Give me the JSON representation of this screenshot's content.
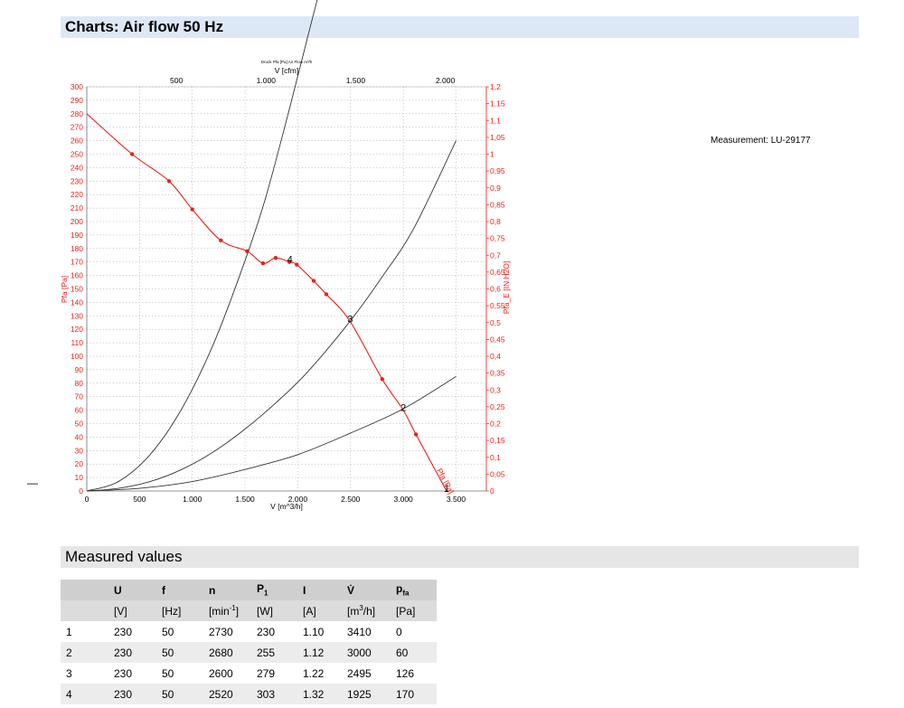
{
  "header": {
    "title": "Charts: Air flow 50 Hz"
  },
  "measurement": "Measurement: LU-29177",
  "dash": "—",
  "chart_data": {
    "type": "line",
    "top_caption": "Druck Pfa [Pa] Air Flow m³/h",
    "x_bottom": {
      "label": "V [m^3/h]",
      "ticks": [
        0,
        500,
        1000,
        1500,
        2000,
        2500,
        3000,
        3500
      ],
      "tick_labels": [
        "0",
        "500",
        "1.000",
        "1.500",
        "2.000",
        "2.500",
        "3.000",
        "3.500"
      ],
      "range": [
        0,
        3500
      ]
    },
    "x_top": {
      "label": "V [cfm]",
      "ticks": [
        500,
        1000,
        1500,
        2000
      ],
      "tick_labels": [
        "500",
        "1.000",
        "1.500",
        "2.000"
      ]
    },
    "y_left": {
      "label": "Pfa [Pa]",
      "range": [
        0,
        300
      ],
      "step": 10
    },
    "y_right": {
      "label": "Pfa_E [IN H2O]",
      "tick_labels": [
        "0",
        "0,05",
        "0,1",
        "0,15",
        "0,2",
        "0,25",
        "0,3",
        "0,35",
        "0,4",
        "0,45",
        "0,5",
        "0,55",
        "0,6",
        "0,65",
        "0,7",
        "0,75",
        "0,8",
        "0,85",
        "0,9",
        "0,95",
        "1",
        "1,05",
        "1,1",
        "1,15",
        "1,2"
      ]
    },
    "grid": true,
    "series": [
      {
        "name": "Pfa [Pa]",
        "color": "#e8211c",
        "x": [
          0,
          430,
          780,
          1000,
          1270,
          1520,
          1670,
          1790,
          1920,
          1990,
          2150,
          2270,
          2495,
          2800,
          3000,
          3120,
          3410
        ],
        "y": [
          280,
          250,
          230,
          209,
          186,
          178,
          169,
          173,
          170,
          168,
          156,
          146,
          126,
          83,
          60,
          42,
          0
        ],
        "markers": [
          430,
          780,
          1000,
          1270,
          1520,
          1670,
          1790,
          1920,
          1990,
          2150,
          2270,
          2800,
          3120
        ]
      },
      {
        "name": "",
        "color": "#333333",
        "x": [
          0,
          300,
          600,
          900,
          1200,
          1500,
          1700,
          1925,
          2100,
          2300
        ],
        "y": [
          0,
          7,
          27,
          61,
          109,
          171,
          219,
          285,
          339,
          400
        ]
      },
      {
        "name": "",
        "color": "#333333",
        "x": [
          0,
          300,
          600,
          900,
          1200,
          1500,
          1800,
          2100,
          2495,
          2800,
          3100,
          3500
        ],
        "y": [
          0,
          2,
          7,
          16,
          29,
          46,
          66,
          89,
          126,
          159,
          195,
          260
        ]
      },
      {
        "name": "",
        "color": "#333333",
        "x": [
          0,
          500,
          1000,
          1500,
          2000,
          2500,
          3000,
          3500
        ],
        "y": [
          0,
          2,
          7,
          16,
          27,
          43,
          61,
          85
        ]
      }
    ],
    "point_labels": [
      {
        "x": 1925,
        "y": 170,
        "text": "4"
      },
      {
        "x": 2495,
        "y": 126,
        "text": "3"
      },
      {
        "x": 3000,
        "y": 60,
        "text": "2"
      },
      {
        "x": 3410,
        "y": 0,
        "text": "1"
      }
    ]
  },
  "values_header": {
    "title": "Measured values"
  },
  "table": {
    "header_symbols": [
      "",
      "U",
      "f",
      "n",
      "P",
      "I",
      "V̇",
      "p"
    ],
    "header_subs": [
      "",
      "",
      "",
      "",
      "1",
      "",
      "",
      "fa"
    ],
    "units": [
      "",
      "[V]",
      "[Hz]",
      "[min",
      "[W]",
      "[A]",
      "[m",
      "[Pa]"
    ],
    "units_sup": [
      "",
      "",
      "",
      "-1",
      "",
      "",
      "3",
      ""
    ],
    "units_tail": [
      "",
      "",
      "",
      "]",
      "",
      "",
      "/h]",
      ""
    ],
    "rows": [
      [
        "1",
        "230",
        "50",
        "2730",
        "230",
        "1.10",
        "3410",
        "0"
      ],
      [
        "2",
        "230",
        "50",
        "2680",
        "255",
        "1.12",
        "3000",
        "60"
      ],
      [
        "3",
        "230",
        "50",
        "2600",
        "279",
        "1.22",
        "2495",
        "126"
      ],
      [
        "4",
        "230",
        "50",
        "2520",
        "303",
        "1.32",
        "1925",
        "170"
      ]
    ]
  }
}
